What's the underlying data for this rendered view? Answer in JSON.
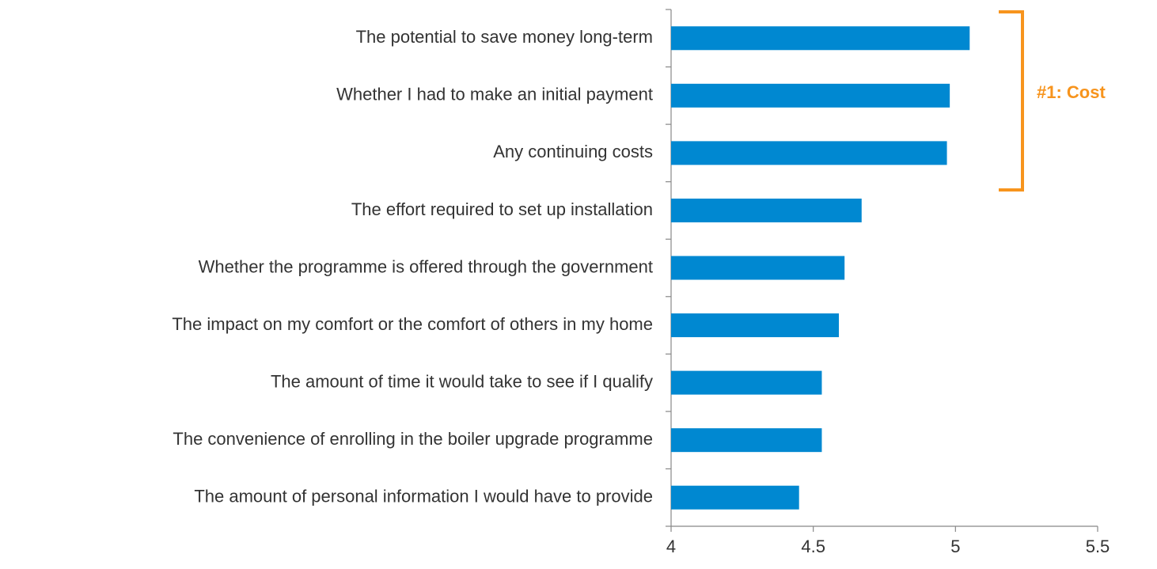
{
  "chart_data": {
    "type": "bar",
    "orientation": "horizontal",
    "categories": [
      "The potential to save money long-term",
      "Whether I had to make an initial payment",
      "Any continuing costs",
      "The effort required to set up installation",
      "Whether the programme is offered through the government",
      "The impact on my comfort or the comfort of others in my home",
      "The amount of time it would take to see if I qualify",
      "The convenience of enrolling in the boiler upgrade programme",
      "The amount of personal information I would have to provide"
    ],
    "values": [
      5.05,
      4.98,
      4.97,
      4.67,
      4.61,
      4.59,
      4.53,
      4.53,
      4.45
    ],
    "color": "#0088d1",
    "xlim": [
      4,
      5.5
    ],
    "xticks": [
      4,
      4.5,
      5,
      5.5
    ],
    "annotation": "#1: Cost",
    "annotation_color": "#f7941d"
  }
}
